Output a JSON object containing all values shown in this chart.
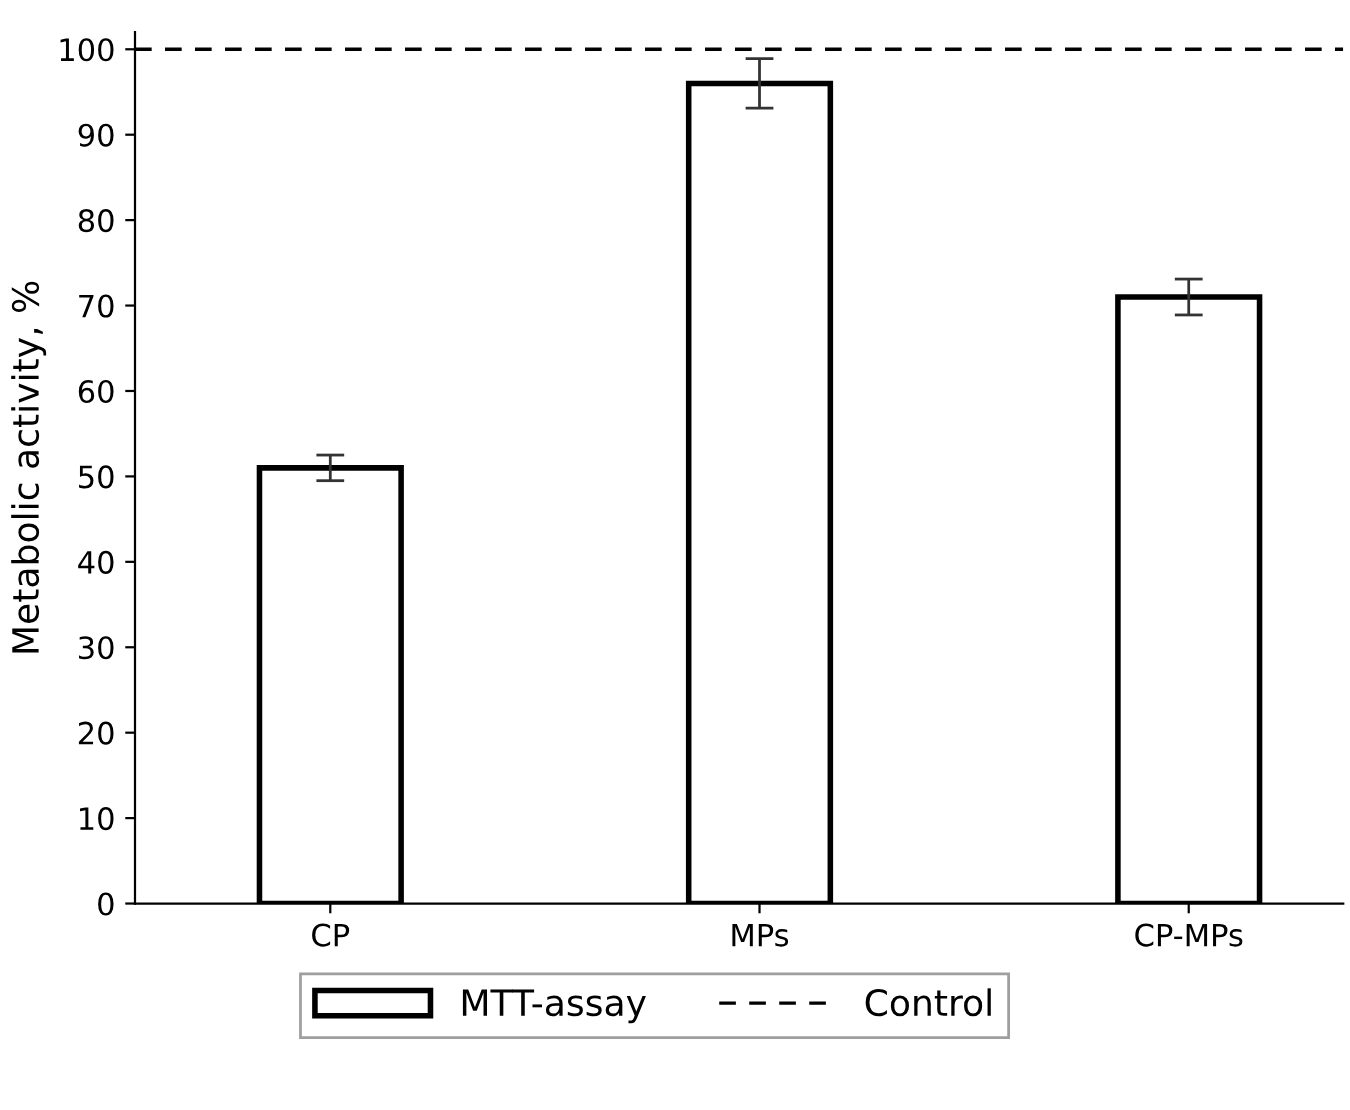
{
  "chart_data": {
    "type": "bar",
    "ylabel": "Metabolic activity, %",
    "categories": [
      "CP",
      "MPs",
      "CP-MPs"
    ],
    "series": [
      {
        "name": "MTT-assay",
        "color": "#ffffff",
        "values": [
          51,
          96,
          71
        ],
        "errors": [
          1.5,
          2.9,
          2.1
        ]
      }
    ],
    "ylim": [
      0,
      102
    ],
    "yticks": [
      0,
      10,
      20,
      30,
      40,
      50,
      60,
      70,
      80,
      90,
      100
    ],
    "ref_lines": [
      {
        "axis": "y",
        "value": 100,
        "label": "Control",
        "color": "#000000",
        "line_style": "dashed"
      }
    ],
    "grid": false,
    "legend": "bottom"
  }
}
